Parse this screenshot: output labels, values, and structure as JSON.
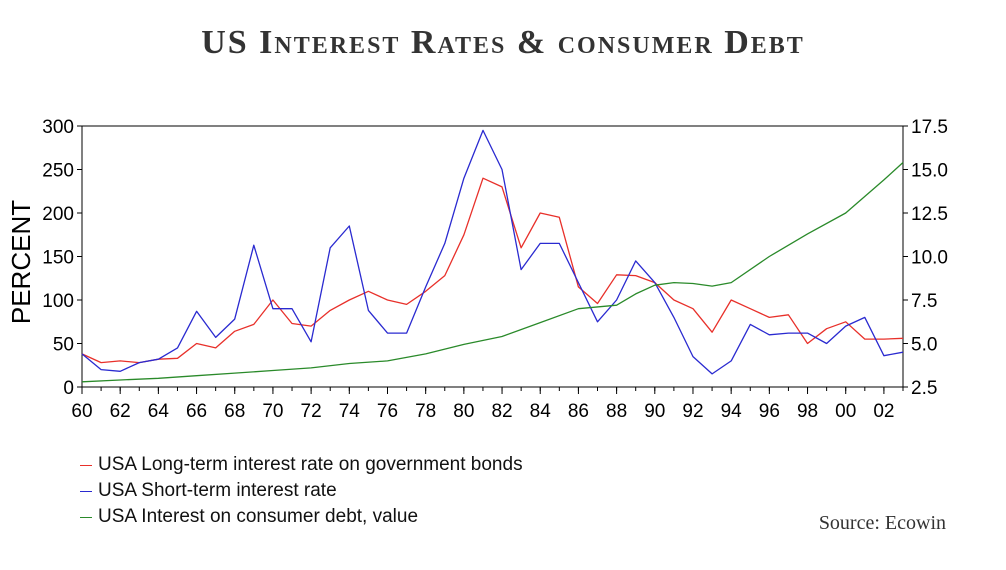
{
  "chart_data": {
    "type": "line",
    "title": "US Interest Rates & consumer Debt",
    "ylabel": "PERCENT",
    "source": "Source: Ecowin",
    "x_tick_labels": [
      "60",
      "62",
      "64",
      "66",
      "68",
      "70",
      "72",
      "74",
      "76",
      "78",
      "80",
      "82",
      "84",
      "86",
      "88",
      "90",
      "92",
      "94",
      "96",
      "98",
      "00",
      "02"
    ],
    "x_tick_years": [
      1960,
      1962,
      1964,
      1966,
      1968,
      1970,
      1972,
      1974,
      1976,
      1978,
      1980,
      1982,
      1984,
      1986,
      1988,
      1990,
      1992,
      1994,
      1996,
      1998,
      2000,
      2002
    ],
    "x_range": [
      1960,
      2003
    ],
    "y_left": {
      "range": [
        0,
        300
      ],
      "ticks": [
        0,
        50,
        100,
        150,
        200,
        250,
        300
      ],
      "tick_labels": [
        "0",
        "50",
        "100",
        "150",
        "200",
        "250",
        "300"
      ]
    },
    "y_right": {
      "range": [
        2.5,
        17.5
      ],
      "ticks": [
        2.5,
        5.0,
        7.5,
        10.0,
        12.5,
        15.0,
        17.5
      ],
      "tick_labels": [
        "2.5",
        "5.0",
        "7.5",
        "10.0",
        "12.5",
        "15.0",
        "17.5"
      ]
    },
    "series": [
      {
        "name": "USA Long-term interest rate on government bonds",
        "color": "#e8302a",
        "axis": "left",
        "x": [
          1960,
          1961,
          1962,
          1963,
          1964,
          1965,
          1966,
          1967,
          1968,
          1969,
          1970,
          1971,
          1972,
          1973,
          1974,
          1975,
          1976,
          1977,
          1978,
          1979,
          1980,
          1981,
          1982,
          1983,
          1984,
          1985,
          1986,
          1987,
          1988,
          1989,
          1990,
          1991,
          1992,
          1993,
          1994,
          1995,
          1996,
          1997,
          1998,
          1999,
          2000,
          2001,
          2002,
          2003
        ],
        "values": [
          38,
          28,
          30,
          28,
          32,
          33,
          50,
          45,
          64,
          72,
          100,
          73,
          70,
          88,
          100,
          110,
          100,
          95,
          110,
          128,
          175,
          240,
          230,
          160,
          200,
          195,
          115,
          96,
          129,
          128,
          120,
          100,
          90,
          63,
          100,
          90,
          80,
          83,
          50,
          67,
          75,
          55,
          55,
          56
        ]
      },
      {
        "name": "USA Short-term interest rate",
        "color": "#2a2ad0",
        "axis": "left",
        "x": [
          1960,
          1961,
          1962,
          1963,
          1964,
          1965,
          1966,
          1967,
          1968,
          1969,
          1970,
          1971,
          1972,
          1973,
          1974,
          1975,
          1976,
          1977,
          1978,
          1979,
          1980,
          1981,
          1982,
          1983,
          1984,
          1985,
          1986,
          1987,
          1988,
          1989,
          1990,
          1991,
          1992,
          1993,
          1994,
          1995,
          1996,
          1997,
          1998,
          1999,
          2000,
          2001,
          2002,
          2003
        ],
        "values": [
          38,
          20,
          18,
          28,
          32,
          45,
          87,
          57,
          78,
          163,
          90,
          90,
          52,
          160,
          185,
          88,
          62,
          62,
          115,
          165,
          240,
          295,
          250,
          135,
          165,
          165,
          120,
          75,
          100,
          145,
          120,
          80,
          35,
          15,
          30,
          72,
          60,
          62,
          62,
          50,
          70,
          80,
          36,
          40
        ]
      },
      {
        "name": "USA Interest on consumer debt, value",
        "color": "#2a8a2a",
        "axis": "right",
        "x": [
          1960,
          1962,
          1964,
          1966,
          1968,
          1970,
          1972,
          1974,
          1976,
          1978,
          1980,
          1982,
          1984,
          1986,
          1988,
          1989,
          1990,
          1991,
          1992,
          1993,
          1994,
          1996,
          1998,
          2000,
          2002,
          2003
        ],
        "values": [
          2.8,
          2.9,
          3.0,
          3.15,
          3.3,
          3.45,
          3.6,
          3.85,
          4.0,
          4.4,
          4.95,
          5.4,
          6.2,
          7.0,
          7.2,
          7.85,
          8.35,
          8.5,
          8.45,
          8.3,
          8.5,
          10.0,
          11.3,
          12.5,
          14.4,
          15.4
        ]
      }
    ]
  }
}
